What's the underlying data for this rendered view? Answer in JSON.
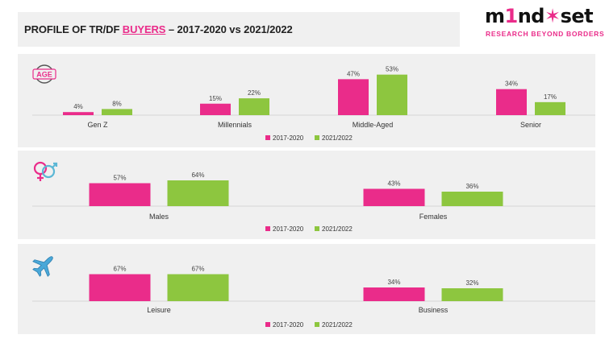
{
  "header": {
    "title_prefix": "PROFILE OF TR/DF ",
    "title_highlight": "BUYERS",
    "title_suffix": " – 2017-2020 vs 2021/2022"
  },
  "logo": {
    "word_a": "m",
    "word_b": "1",
    "word_c": "nd",
    "word_d": "set",
    "tagline": "RESEARCH BEYOND BORDERS"
  },
  "colors": {
    "series1": "#ea2c8a",
    "series2": "#8dc63f",
    "accent": "#ea2c8a"
  },
  "icons": {
    "age": "age-icon",
    "gender": "gender-icon",
    "purpose": "airplane-icon"
  },
  "age_icon_text": "AGE",
  "chart_data": [
    {
      "type": "bar",
      "id": "age",
      "categories": [
        "Gen Z",
        "Millennials",
        "Middle-Aged",
        "Senior"
      ],
      "series": [
        {
          "name": "2017-2020",
          "values": [
            4,
            15,
            47,
            34
          ]
        },
        {
          "name": "2021/2022",
          "values": [
            8,
            22,
            53,
            17
          ]
        }
      ],
      "unit": "%",
      "legend": "bottom-right"
    },
    {
      "type": "bar",
      "id": "gender",
      "categories": [
        "Males",
        "Females"
      ],
      "series": [
        {
          "name": "2017-2020",
          "values": [
            57,
            43
          ]
        },
        {
          "name": "2021/2022",
          "values": [
            64,
            36
          ]
        }
      ],
      "unit": "%",
      "legend": "bottom-right"
    },
    {
      "type": "bar",
      "id": "purpose",
      "categories": [
        "Leisure",
        "Business"
      ],
      "series": [
        {
          "name": "2017-2020",
          "values": [
            67,
            34
          ]
        },
        {
          "name": "2021/2022",
          "values": [
            67,
            32
          ]
        }
      ],
      "unit": "%",
      "legend": "bottom-right"
    }
  ]
}
